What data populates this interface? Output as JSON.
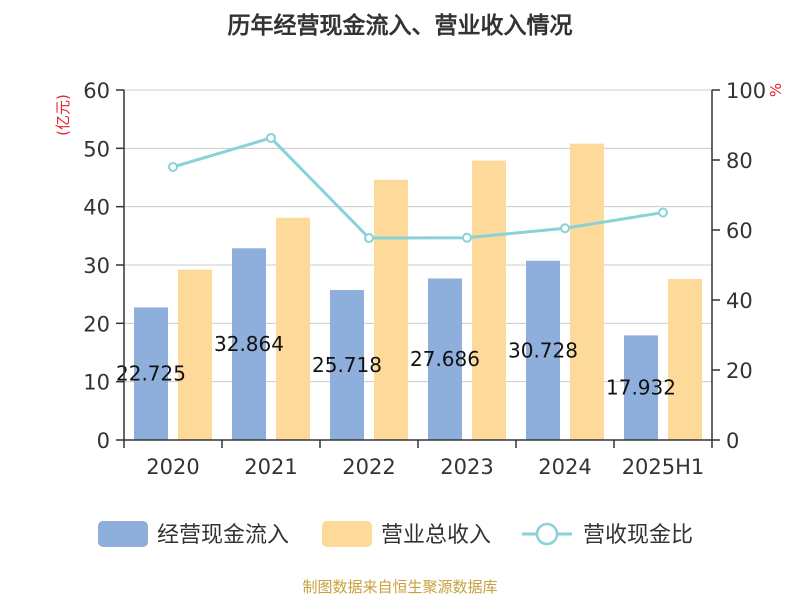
{
  "chart_data": {
    "type": "bar",
    "title": "历年经营现金流入、营业收入情况",
    "categories": [
      "2020",
      "2021",
      "2022",
      "2023",
      "2024",
      "2025H1"
    ],
    "series": [
      {
        "name": "经营现金流入",
        "type": "bar",
        "axis": "left",
        "color": "#8eaedb",
        "values": [
          22.725,
          32.864,
          25.718,
          27.686,
          30.728,
          17.932
        ],
        "labels": [
          "22.725",
          "32.864",
          "25.718",
          "27.686",
          "30.728",
          "17.932"
        ]
      },
      {
        "name": "营业总收入",
        "type": "bar",
        "axis": "left",
        "color": "#fdd99a",
        "values": [
          29.2,
          38.1,
          44.6,
          47.9,
          50.8,
          27.6
        ]
      },
      {
        "name": "营收现金比",
        "type": "line",
        "axis": "right",
        "color": "#88d2d8",
        "values": [
          78,
          86.3,
          57.7,
          57.8,
          60.5,
          65
        ]
      }
    ],
    "yleft": {
      "label": "(亿元)",
      "min": 0,
      "max": 60,
      "ticks": [
        0,
        10,
        20,
        30,
        40,
        50,
        60
      ]
    },
    "yright": {
      "label": "%",
      "min": 0,
      "max": 100,
      "ticks": [
        0,
        20,
        40,
        60,
        80,
        100
      ]
    },
    "grid": true,
    "legend": "bottom",
    "source": "制图数据来自恒生聚源数据库"
  }
}
